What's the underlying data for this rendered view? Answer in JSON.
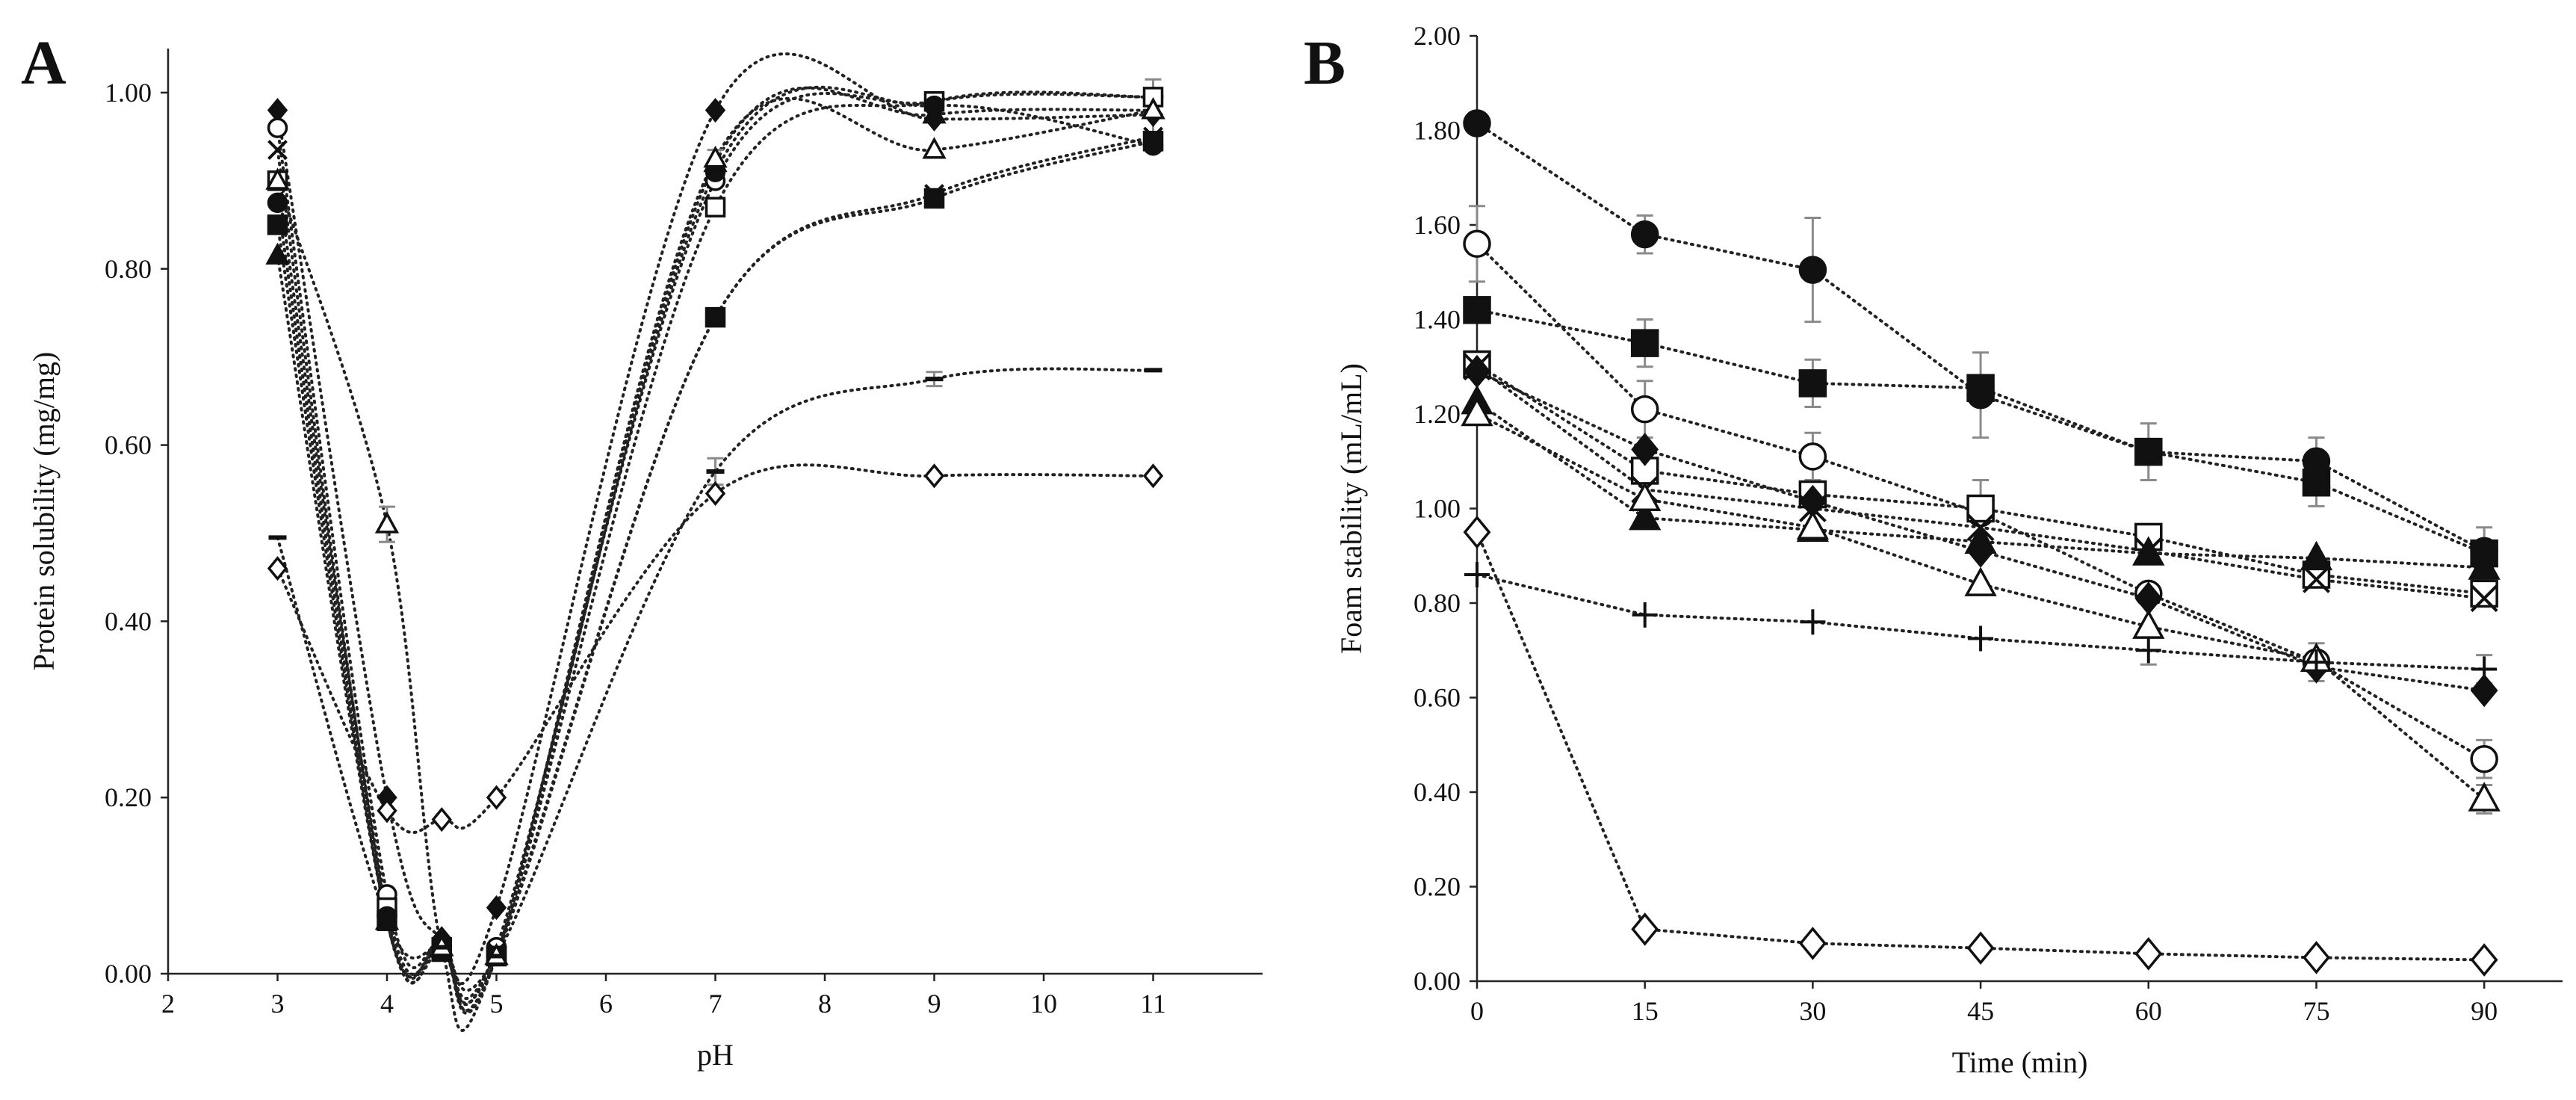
{
  "chart_data": [
    {
      "panel": "A",
      "type": "line",
      "xlabel": "pH",
      "ylabel": "Protein solubility (mg/mg)",
      "xlim": [
        2,
        12
      ],
      "ylim": [
        0,
        1.05
      ],
      "x_ticks": [
        "2",
        "3",
        "4",
        "5",
        "6",
        "7",
        "8",
        "9",
        "10",
        "11"
      ],
      "y_ticks": [
        "0.00",
        "0.20",
        "0.40",
        "0.60",
        "0.80",
        "1.00"
      ],
      "grid": false,
      "series": [
        {
          "name": "filled diamond",
          "marker": "diamond",
          "filled": true,
          "x": [
            3,
            4,
            4.5,
            5,
            7,
            9,
            11
          ],
          "y": [
            0.98,
            0.2,
            0.04,
            0.075,
            0.98,
            0.97,
            0.975
          ]
        },
        {
          "name": "open circle",
          "marker": "circle",
          "filled": false,
          "x": [
            3,
            4,
            4.5,
            5,
            7,
            9,
            11
          ],
          "y": [
            0.96,
            0.09,
            0.035,
            0.03,
            0.9,
            0.99,
            0.995
          ]
        },
        {
          "name": "cross",
          "marker": "x",
          "filled": false,
          "x": [
            3,
            4,
            4.5,
            5,
            7,
            9,
            11
          ],
          "y": [
            0.935,
            0.065,
            0.03,
            0.025,
            0.745,
            0.885,
            0.95
          ]
        },
        {
          "name": "open square",
          "marker": "square",
          "filled": false,
          "x": [
            3,
            4,
            4.5,
            5,
            7,
            9,
            11
          ],
          "y": [
            0.9,
            0.075,
            0.03,
            0.02,
            0.87,
            0.99,
            0.995
          ]
        },
        {
          "name": "filled circle",
          "marker": "circle",
          "filled": true,
          "x": [
            3,
            4,
            4.5,
            5,
            7,
            9,
            11
          ],
          "y": [
            0.875,
            0.065,
            0.035,
            0.02,
            0.91,
            0.985,
            0.94
          ]
        },
        {
          "name": "filled square",
          "marker": "square",
          "filled": true,
          "x": [
            3,
            4,
            4.5,
            5,
            7,
            9,
            11
          ],
          "y": [
            0.85,
            0.06,
            0.025,
            0.02,
            0.745,
            0.88,
            0.945
          ]
        },
        {
          "name": "filled triangle",
          "marker": "triangle",
          "filled": true,
          "x": [
            3,
            4,
            4.5,
            5,
            7,
            9,
            11
          ],
          "y": [
            0.815,
            0.06,
            0.03,
            0.02,
            0.92,
            0.975,
            0.98
          ]
        },
        {
          "name": "open triangle",
          "marker": "triangle",
          "filled": false,
          "x": [
            3,
            4,
            4.5,
            5,
            7,
            9,
            11
          ],
          "y": [
            0.9,
            0.51,
            0.03,
            0.02,
            0.925,
            0.935,
            0.98
          ]
        },
        {
          "name": "dash",
          "marker": "dash",
          "filled": true,
          "x": [
            3,
            4,
            4.5,
            5,
            7,
            9,
            11
          ],
          "y": [
            0.495,
            0.06,
            0.03,
            0.02,
            0.57,
            0.675,
            0.685
          ]
        },
        {
          "name": "open diamond",
          "marker": "diamond",
          "filled": false,
          "x": [
            3,
            4,
            4.5,
            5,
            7,
            9,
            11
          ],
          "y": [
            0.46,
            0.185,
            0.175,
            0.2,
            0.545,
            0.565,
            0.565
          ]
        }
      ],
      "error_bars": [
        {
          "x": 4,
          "y": 0.51,
          "err": 0.02
        },
        {
          "x": 7,
          "y": 0.57,
          "err": 0.015
        },
        {
          "x": 9,
          "y": 0.675,
          "err": 0.008
        },
        {
          "x": 11,
          "y": 0.995,
          "err": 0.02
        },
        {
          "x": 11,
          "y": 0.96,
          "err": 0.015
        },
        {
          "x": 7,
          "y": 0.92,
          "err": 0.015
        }
      ]
    },
    {
      "panel": "B",
      "type": "line",
      "xlabel": "Time (min)",
      "ylabel": "Foam stability (mL/mL)",
      "xlim": [
        0,
        97
      ],
      "ylim": [
        0,
        2.0
      ],
      "x_ticks": [
        "0",
        "15",
        "30",
        "45",
        "60",
        "75",
        "90"
      ],
      "y_ticks": [
        "0.00",
        "0.20",
        "0.40",
        "0.60",
        "0.80",
        "1.00",
        "1.20",
        "1.40",
        "1.60",
        "1.80",
        "2.00"
      ],
      "grid": false,
      "series": [
        {
          "name": "filled circle",
          "marker": "circle",
          "filled": true,
          "x": [
            0,
            15,
            30,
            45,
            60,
            75,
            90
          ],
          "y": [
            1.815,
            1.58,
            1.505,
            1.24,
            1.12,
            1.1,
            0.91
          ]
        },
        {
          "name": "open circle",
          "marker": "circle",
          "filled": false,
          "x": [
            0,
            15,
            30,
            45,
            60,
            75,
            90
          ],
          "y": [
            1.56,
            1.21,
            1.11,
            0.99,
            0.82,
            0.675,
            0.47
          ]
        },
        {
          "name": "filled square",
          "marker": "square",
          "filled": true,
          "x": [
            0,
            15,
            30,
            45,
            60,
            75,
            90
          ],
          "y": [
            1.42,
            1.35,
            1.265,
            1.255,
            1.12,
            1.055,
            0.905
          ]
        },
        {
          "name": "open square",
          "marker": "square",
          "filled": false,
          "x": [
            0,
            15,
            30,
            45,
            60,
            75,
            90
          ],
          "y": [
            1.305,
            1.08,
            1.03,
            1.0,
            0.94,
            0.86,
            0.82
          ]
        },
        {
          "name": "cross",
          "marker": "x",
          "filled": false,
          "x": [
            0,
            15,
            30,
            45,
            60,
            75,
            90
          ],
          "y": [
            1.3,
            1.04,
            1.0,
            0.96,
            0.91,
            0.85,
            0.81
          ]
        },
        {
          "name": "filled diamond",
          "marker": "diamond",
          "filled": true,
          "x": [
            0,
            15,
            30,
            45,
            60,
            75,
            90
          ],
          "y": [
            1.29,
            1.125,
            1.015,
            0.91,
            0.81,
            0.665,
            0.615
          ]
        },
        {
          "name": "filled triangle",
          "marker": "triangle",
          "filled": true,
          "x": [
            0,
            15,
            30,
            45,
            60,
            75,
            90
          ],
          "y": [
            1.225,
            0.98,
            0.955,
            0.93,
            0.905,
            0.895,
            0.875
          ]
        },
        {
          "name": "open triangle",
          "marker": "triangle",
          "filled": false,
          "x": [
            0,
            15,
            30,
            45,
            60,
            75,
            90
          ],
          "y": [
            1.2,
            1.02,
            0.96,
            0.84,
            0.75,
            0.68,
            0.385
          ]
        },
        {
          "name": "plus",
          "marker": "plus",
          "filled": false,
          "x": [
            0,
            15,
            30,
            45,
            60,
            75,
            90
          ],
          "y": [
            0.86,
            0.775,
            0.76,
            0.725,
            0.7,
            0.675,
            0.66
          ]
        },
        {
          "name": "open diamond",
          "marker": "diamond",
          "filled": false,
          "x": [
            0,
            15,
            30,
            45,
            60,
            75,
            90
          ],
          "y": [
            0.95,
            0.11,
            0.08,
            0.07,
            0.058,
            0.05,
            0.045
          ]
        }
      ],
      "error_bars": [
        {
          "x": 0,
          "y": 1.56,
          "err": 0.08
        },
        {
          "x": 15,
          "y": 1.58,
          "err": 0.04
        },
        {
          "x": 15,
          "y": 1.35,
          "err": 0.05
        },
        {
          "x": 15,
          "y": 1.21,
          "err": 0.06
        },
        {
          "x": 30,
          "y": 1.505,
          "err": 0.11
        },
        {
          "x": 30,
          "y": 1.265,
          "err": 0.05
        },
        {
          "x": 30,
          "y": 1.11,
          "err": 0.05
        },
        {
          "x": 45,
          "y": 1.24,
          "err": 0.09
        },
        {
          "x": 45,
          "y": 0.99,
          "err": 0.07
        },
        {
          "x": 60,
          "y": 1.12,
          "err": 0.06
        },
        {
          "x": 60,
          "y": 0.7,
          "err": 0.03
        },
        {
          "x": 75,
          "y": 1.055,
          "err": 0.05
        },
        {
          "x": 75,
          "y": 1.1,
          "err": 0.05
        },
        {
          "x": 75,
          "y": 0.675,
          "err": 0.04
        },
        {
          "x": 90,
          "y": 0.91,
          "err": 0.05
        },
        {
          "x": 90,
          "y": 0.66,
          "err": 0.03
        },
        {
          "x": 90,
          "y": 0.47,
          "err": 0.04
        },
        {
          "x": 90,
          "y": 0.385,
          "err": 0.03
        }
      ]
    }
  ]
}
